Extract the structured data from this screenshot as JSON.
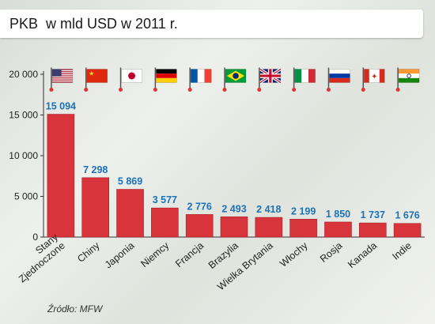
{
  "title": "PKB  w mld USD w 2011 r.",
  "source": "Źródło: MFW",
  "colors": {
    "bar": "#d8343c",
    "value_label": "#1a72b8",
    "axis": "#333333"
  },
  "chart_data": {
    "type": "bar",
    "title": "PKB  w mld USD w 2011 r.",
    "xlabel": "",
    "ylabel": "",
    "ylim": [
      0,
      20000
    ],
    "yticks": [
      0,
      5000,
      10000,
      15000,
      20000
    ],
    "ytick_labels": [
      "0",
      "5 000",
      "10 000",
      "15 000",
      "20 000"
    ],
    "categories": [
      "Stany Zjednoczone",
      "Chiny",
      "Japonia",
      "Niemcy",
      "Francja",
      "Brazylia",
      "Wielka Brytania",
      "Włochy",
      "Rosja",
      "Kanada",
      "Indie"
    ],
    "values": [
      15094,
      7298,
      5869,
      3577,
      2776,
      2493,
      2418,
      2199,
      1850,
      1737,
      1676
    ],
    "value_labels": [
      "15 094",
      "7 298",
      "5 869",
      "3 577",
      "2 776",
      "2 493",
      "2 418",
      "2 199",
      "1 850",
      "1 737",
      "1 676"
    ],
    "flags": [
      "usa-flag-icon",
      "china-flag-icon",
      "japan-flag-icon",
      "germany-flag-icon",
      "france-flag-icon",
      "brazil-flag-icon",
      "uk-flag-icon",
      "italy-flag-icon",
      "russia-flag-icon",
      "canada-flag-icon",
      "india-flag-icon"
    ],
    "grid": false
  }
}
